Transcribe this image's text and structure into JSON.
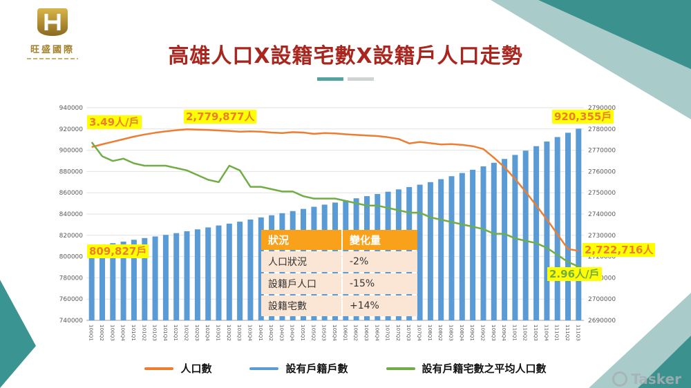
{
  "slide": {
    "title": "高雄人口X設籍宅數X設籍戶人口走勢",
    "logo_text": "旺盛國際",
    "watermark": "Tasker"
  },
  "annotations": {
    "avg_start": {
      "text": "3.49人/戶",
      "color": "#ED7D31"
    },
    "pop_peak": {
      "text": "2,779,877人",
      "color": "#ED7D31"
    },
    "bar_end": {
      "text": "920,355戶",
      "color": "#ED7D31"
    },
    "bar_start": {
      "text": "809,827戶",
      "color": "#ED7D31"
    },
    "pop_end": {
      "text": "2,722,716人",
      "color": "#ED7D31"
    },
    "avg_end": {
      "text": "2.96人/戶",
      "color": "#70AD47"
    }
  },
  "overlay_table": {
    "headers": [
      "狀況",
      "變化量"
    ],
    "rows": [
      [
        "人口狀況",
        "-2%"
      ],
      [
        "設籍戶人口",
        "-15%"
      ],
      [
        "設籍宅數",
        "+14%"
      ]
    ]
  },
  "legend": {
    "items": [
      {
        "label": "人口數",
        "color": "#ED7D31"
      },
      {
        "label": "設有戶籍戶數",
        "color": "#5B9BD5"
      },
      {
        "label": "設有戶籍宅數之平均人口數",
        "color": "#70AD47"
      }
    ]
  },
  "chart_data": {
    "type": "bar",
    "subtype": "combo-bar-line",
    "title": "高雄人口X設籍宅數X設籍戶人口走勢",
    "grid": true,
    "legend_position": "bottom",
    "left_axis": {
      "min": 740000,
      "max": 940000,
      "step": 20000
    },
    "right_axis": {
      "min": 2690000,
      "max": 2790000,
      "step": 10000
    },
    "categories": [
      "100Q1",
      "100Q2",
      "100Q3",
      "100Q4",
      "101Q1",
      "101Q2",
      "101Q3",
      "101Q4",
      "102Q1",
      "102Q2",
      "102Q3",
      "102Q4",
      "103Q1",
      "103Q2",
      "103Q3",
      "103Q4",
      "104Q1",
      "104Q2",
      "104Q3",
      "104Q4",
      "105Q1",
      "105Q2",
      "105Q3",
      "105Q4",
      "106Q1",
      "106Q2",
      "106Q3",
      "106Q4",
      "107Q1",
      "107Q2",
      "107Q3",
      "107Q4",
      "108Q1",
      "108Q2",
      "108Q3",
      "108Q4",
      "109Q1",
      "109Q2",
      "109Q3",
      "109Q4",
      "110Q1",
      "110Q2",
      "110Q3",
      "110Q4",
      "111Q1",
      "111Q2",
      "111Q3"
    ],
    "series": [
      {
        "name": "設有戶籍戶數",
        "type": "bar",
        "axis": "left",
        "color": "#5B9BD5",
        "values": [
          809827,
          811200,
          812600,
          814000,
          815800,
          817400,
          818900,
          820400,
          822000,
          823800,
          825600,
          827400,
          829200,
          831000,
          832800,
          834800,
          836800,
          838800,
          840800,
          842800,
          844800,
          846800,
          848800,
          850800,
          852800,
          854800,
          856800,
          858800,
          861000,
          863200,
          865400,
          867600,
          870000,
          872800,
          875600,
          878600,
          881600,
          884800,
          888200,
          891800,
          895600,
          899600,
          903800,
          908200,
          912400,
          916400,
          920355
        ]
      },
      {
        "name": "人口數",
        "type": "line",
        "axis": "right",
        "color": "#ED7D31",
        "values": [
          2771500,
          2772800,
          2774000,
          2775200,
          2776400,
          2777400,
          2778200,
          2778900,
          2779400,
          2779877,
          2779700,
          2779500,
          2779300,
          2779100,
          2778700,
          2778900,
          2778700,
          2778300,
          2778100,
          2778500,
          2778300,
          2777700,
          2778100,
          2777900,
          2777500,
          2777200,
          2776900,
          2776700,
          2776100,
          2775300,
          2773200,
          2773900,
          2773300,
          2772700,
          2772900,
          2772500,
          2771900,
          2770600,
          2766500,
          2762000,
          2756500,
          2750500,
          2744000,
          2737500,
          2730500,
          2723500,
          2722716
        ]
      },
      {
        "name": "設有戶籍宅數之平均人口數",
        "type": "line",
        "axis": "hidden",
        "color": "#70AD47",
        "display_range": [
          2.731,
          3.637
        ],
        "values": [
          3.49,
          3.43,
          3.41,
          3.42,
          3.4,
          3.39,
          3.39,
          3.39,
          3.38,
          3.37,
          3.35,
          3.33,
          3.32,
          3.39,
          3.37,
          3.3,
          3.3,
          3.29,
          3.28,
          3.28,
          3.26,
          3.25,
          3.25,
          3.25,
          3.24,
          3.23,
          3.22,
          3.22,
          3.21,
          3.2,
          3.19,
          3.19,
          3.17,
          3.16,
          3.15,
          3.14,
          3.13,
          3.12,
          3.1,
          3.1,
          3.08,
          3.07,
          3.06,
          3.04,
          3.01,
          2.98,
          2.96
        ]
      }
    ]
  }
}
